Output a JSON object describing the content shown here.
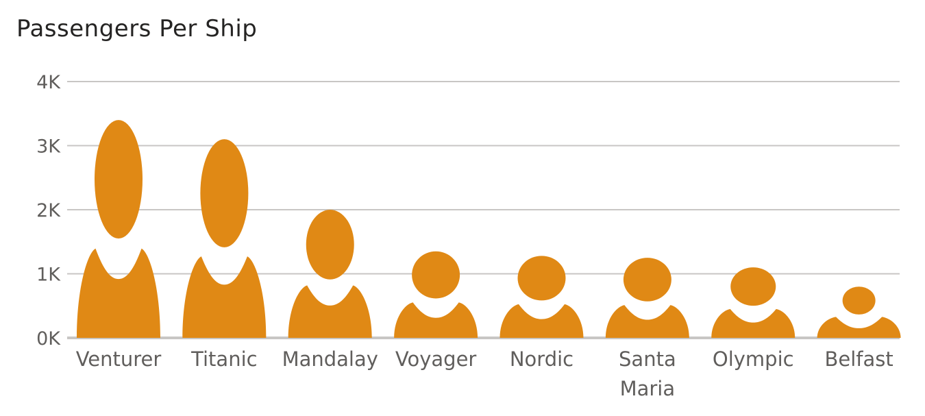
{
  "chart_data": {
    "type": "bar",
    "title": "Passengers Per Ship",
    "xlabel": "",
    "ylabel": "",
    "categories": [
      "Venturer",
      "Titanic",
      "Mandalay",
      "Voyager",
      "Nordic",
      "Santa Maria",
      "Olympic",
      "Belfast"
    ],
    "values": [
      3400,
      3100,
      2000,
      1350,
      1280,
      1250,
      1100,
      800
    ],
    "ylim": [
      0,
      4000
    ],
    "yticks": [
      "0K",
      "1K",
      "2K",
      "3K",
      "4K"
    ],
    "bar_style": "person-icon",
    "grid": true,
    "legend": "none",
    "colors": {
      "bar": "#E08915",
      "grid": "#C8C6C4",
      "axis": "#C8C6C4",
      "text": "#605E5C"
    }
  }
}
